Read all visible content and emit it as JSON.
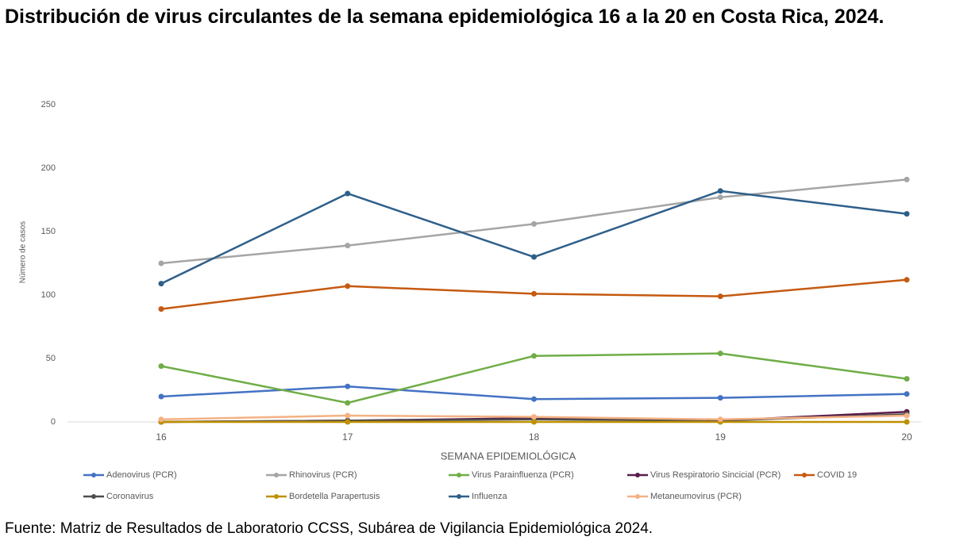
{
  "chart_data": {
    "type": "line",
    "title": "Distribución de virus circulantes de la semana epidemiológica 16 a la 20 en Costa Rica, 2024.",
    "x_label": "SEMANA EPIDEMIOLÓGICA",
    "y_label": "Número de casos",
    "categories": [
      "16",
      "17",
      "18",
      "19",
      "20"
    ],
    "ylim": [
      0,
      250
    ],
    "yticks": [
      0,
      50,
      100,
      150,
      200,
      250
    ],
    "grid": false,
    "legend": "bottom",
    "series": [
      {
        "name": "Adenovirus (PCR)",
        "color": "#4472c4",
        "values": [
          20,
          28,
          18,
          19,
          22
        ]
      },
      {
        "name": "Rhinovirus (PCR)",
        "color": "#a5a5a5",
        "values": [
          125,
          139,
          156,
          177,
          191
        ]
      },
      {
        "name": "Virus Parainfluenza (PCR)",
        "color": "#70ad47",
        "values": [
          44,
          15,
          52,
          54,
          34
        ]
      },
      {
        "name": "Virus Respiratorio Sincicial (PCR)",
        "color": "#5b1d4a",
        "values": [
          0,
          1,
          3,
          1,
          8
        ]
      },
      {
        "name": "COVID 19",
        "color": "#c55a11",
        "values": [
          89,
          107,
          101,
          99,
          112
        ]
      },
      {
        "name": "Coronavirus",
        "color": "#4d4d4d",
        "values": [
          0,
          1,
          2,
          1,
          6
        ]
      },
      {
        "name": "Bordetella Parapertusis",
        "color": "#bf9000",
        "values": [
          0,
          0,
          0,
          0,
          0
        ]
      },
      {
        "name": "Influenza",
        "color": "#2e5f8a",
        "values": [
          109,
          180,
          130,
          182,
          164
        ]
      },
      {
        "name": "Metaneumovirus (PCR)",
        "color": "#f4b183",
        "values": [
          2,
          5,
          4,
          2,
          5
        ]
      }
    ],
    "source": "Fuente: Matriz de Resultados de Laboratorio CCSS, Subárea de Vigilancia Epidemiológica 2024."
  }
}
